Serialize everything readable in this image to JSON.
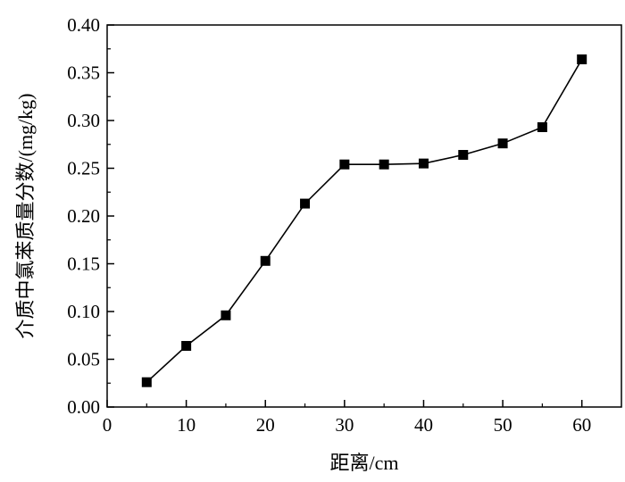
{
  "chart_data": {
    "type": "line",
    "title": "",
    "xlabel": "距离/cm",
    "ylabel": "介质中氯苯质量分数/(mg/kg)",
    "xlim": [
      0,
      65
    ],
    "ylim": [
      0.0,
      0.4
    ],
    "x_ticks": [
      "0",
      "10",
      "20",
      "30",
      "40",
      "50",
      "60"
    ],
    "y_ticks": [
      "0.00",
      "0.05",
      "0.10",
      "0.15",
      "0.20",
      "0.25",
      "0.30",
      "0.35",
      "0.40"
    ],
    "grid": false,
    "legend": "none",
    "marker": "square",
    "color": "#000000",
    "series": [
      {
        "x": [
          5,
          10,
          15,
          20,
          25,
          30,
          35,
          40,
          45,
          50,
          55,
          60
        ],
        "y": [
          0.026,
          0.064,
          0.096,
          0.153,
          0.213,
          0.254,
          0.254,
          0.255,
          0.264,
          0.276,
          0.293,
          0.364
        ]
      }
    ]
  }
}
